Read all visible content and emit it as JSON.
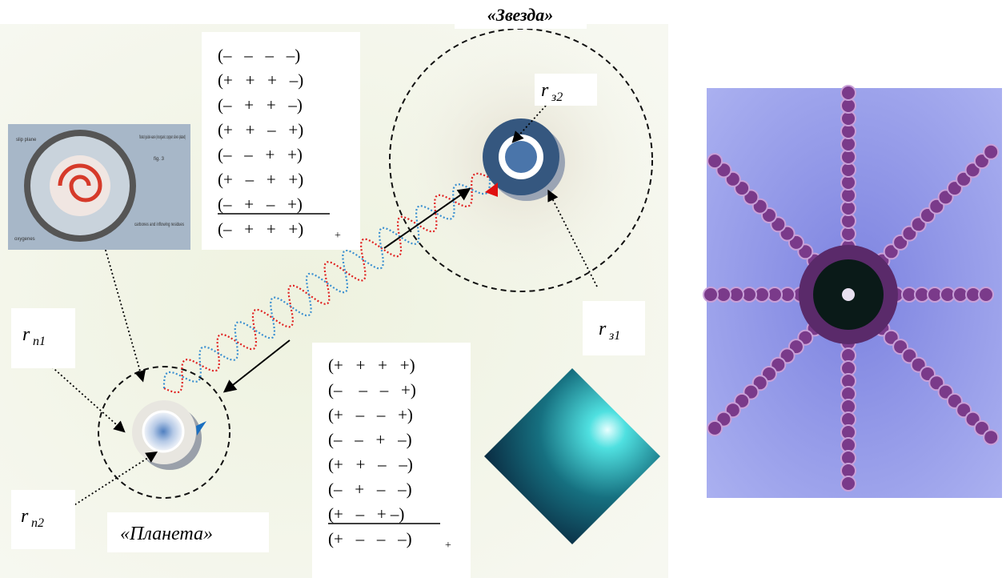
{
  "star_title": "«Звезда»",
  "planet_title": "«Планета»",
  "labels": {
    "rz2": {
      "base": "r",
      "sub": "з2"
    },
    "rz1": {
      "base": "r",
      "sub": "з1"
    },
    "rp1": {
      "base": "r",
      "sub": "п1"
    },
    "rp2": {
      "base": "r",
      "sub": "п2"
    }
  },
  "top_matrix": {
    "rows": [
      "(–   –   –   –)",
      "(+   +   +   –)",
      "(–   +   +   –)",
      "(+   +   –   +)",
      "(–   –   +   +)",
      "(+   –   +   +)",
      "(–   +   –   +)"
    ],
    "sum": "(–   +   +   +)",
    "sum_sub": "+"
  },
  "bottom_matrix": {
    "rows": [
      "(+   +   +   +)",
      "(–    –   –   +)",
      "(+   –   –   +)",
      "(–   –   +   –)",
      "(+   +   –   –)",
      "(–   +   –   –)",
      "(+   –   + –)"
    ],
    "sum": "(+   –   –   –)",
    "sum_sub": "+"
  },
  "inset": {
    "slip_plane": "slip plane",
    "guide_vane": "fluted guide-vane (inorganic copper silver-plated)",
    "fig": "fig. 3",
    "oxygenes": "oxygenes",
    "carbones": "carbones and inflowing residues"
  }
}
